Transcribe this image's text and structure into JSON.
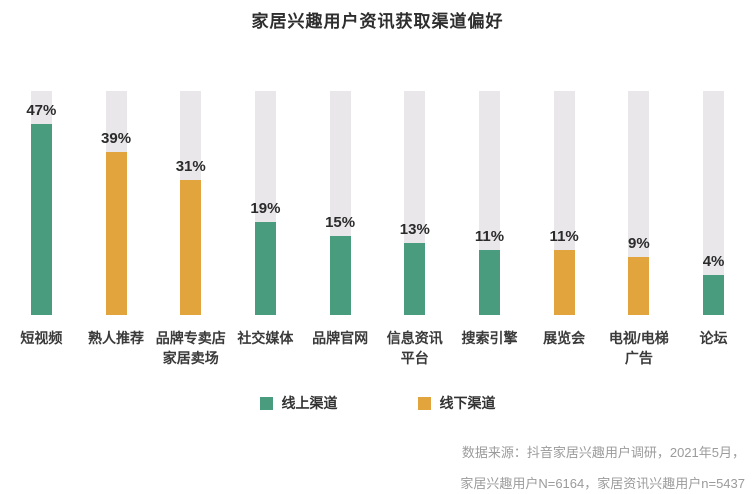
{
  "chart_data": {
    "type": "bar",
    "title": "家居兴趣用户资讯获取渠道偏好",
    "value_suffix": "%",
    "ylim": [
      0,
      55
    ],
    "grid": false,
    "legend_position": "bottom",
    "categories": [
      "短视频",
      "熟人推荐",
      "品牌专卖店\n家居卖场",
      "社交媒体",
      "品牌官网",
      "信息资讯\n平台",
      "搜索引擎",
      "展览会",
      "电视/电梯\n广告",
      "论坛"
    ],
    "items": [
      {
        "label": "短视频",
        "value": 47,
        "channel": "online"
      },
      {
        "label": "熟人推荐",
        "value": 39,
        "channel": "offline"
      },
      {
        "label": "品牌专卖店\n家居卖场",
        "value": 31,
        "channel": "offline"
      },
      {
        "label": "社交媒体",
        "value": 19,
        "channel": "online"
      },
      {
        "label": "品牌官网",
        "value": 15,
        "channel": "online"
      },
      {
        "label": "信息资讯\n平台",
        "value": 13,
        "channel": "online"
      },
      {
        "label": "搜索引擎",
        "value": 11,
        "channel": "online"
      },
      {
        "label": "展览会",
        "value": 11,
        "channel": "offline"
      },
      {
        "label": "电视/电梯\n广告",
        "value": 9,
        "channel": "offline"
      },
      {
        "label": "论坛",
        "value": 4,
        "channel": "online"
      }
    ],
    "legend": [
      {
        "label": "线上渠道",
        "channel": "online"
      },
      {
        "label": "线下渠道",
        "channel": "offline"
      }
    ]
  },
  "colors": {
    "online": "#4a9c7f",
    "offline": "#e2a53d",
    "track": "#e9e7ea",
    "title_text": "#2e2e2e",
    "value_text": "#2b2b2b",
    "source_text": "#9b9b9b"
  },
  "source": {
    "line1": "数据来源：抖音家居兴趣用户调研，2021年5月，",
    "line2": "家居兴趣用户N=6164，家居资讯兴趣用户n=5437"
  }
}
